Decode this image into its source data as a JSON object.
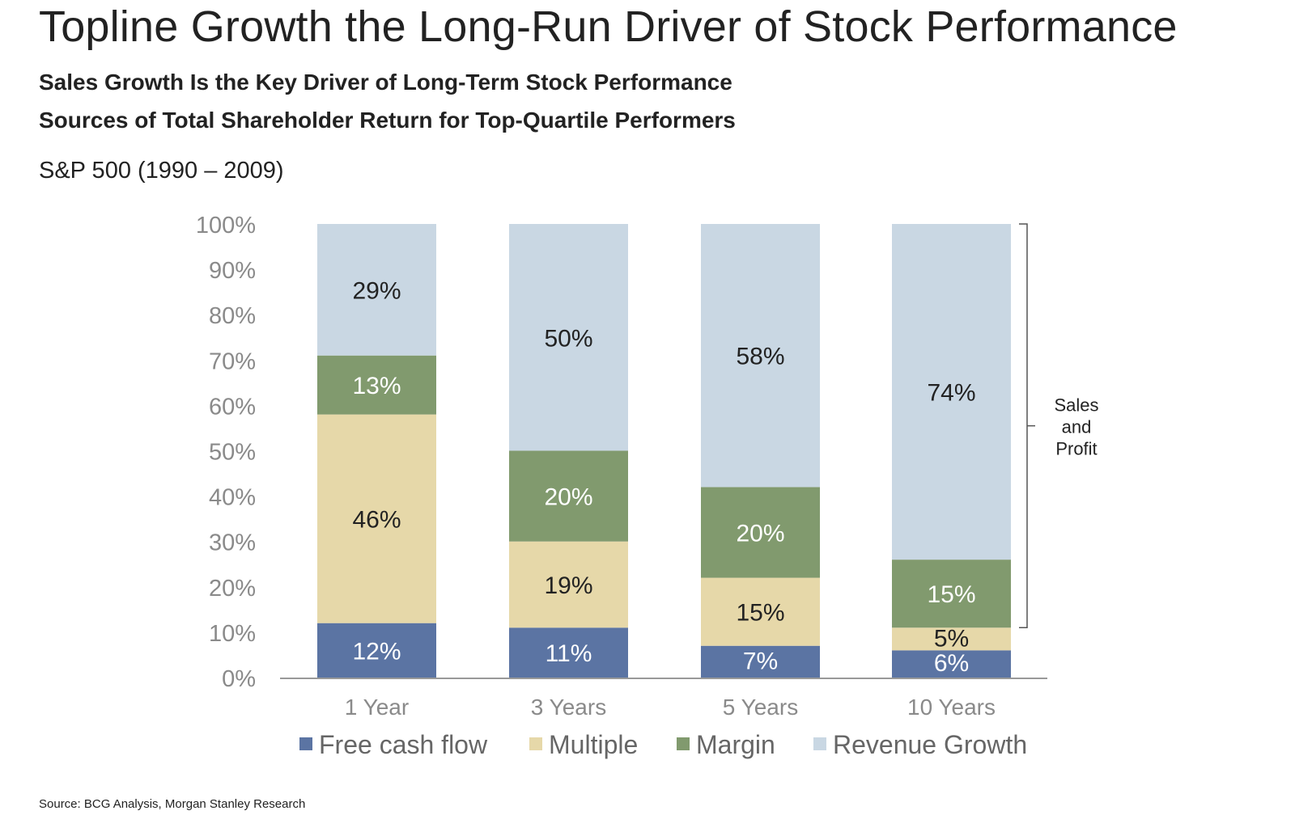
{
  "title": "Topline Growth the Long-Run Driver of Stock Performance",
  "subtitle_1": "Sales Growth Is the Key Driver of Long-Term Stock Performance",
  "subtitle_2": "Sources of Total Shareholder Return for Top-Quartile Performers",
  "period": "S&P 500 (1990 – 2009)",
  "source": "Source: BCG Analysis, Morgan Stanley Research",
  "chart_data": {
    "type": "bar",
    "stacked": true,
    "categories": [
      "1 Year",
      "3 Years",
      "5 Years",
      "10 Years"
    ],
    "series": [
      {
        "name": "Free cash flow",
        "values": [
          12,
          11,
          7,
          6
        ],
        "labels": [
          "12%",
          "11%",
          "7%",
          "6%"
        ],
        "color": "#5b74a3",
        "label_color": "#ffffff"
      },
      {
        "name": "Multiple",
        "values": [
          46,
          19,
          15,
          5
        ],
        "labels": [
          "46%",
          "19%",
          "15%",
          "5%"
        ],
        "color": "#e6d8a9",
        "label_color": "#222222"
      },
      {
        "name": "Margin",
        "values": [
          13,
          20,
          20,
          15
        ],
        "labels": [
          "13%",
          "20%",
          "20%",
          "15%"
        ],
        "color": "#819a6e",
        "label_color": "#ffffff"
      },
      {
        "name": "Revenue Growth",
        "values": [
          29,
          50,
          58,
          74
        ],
        "labels": [
          "29%",
          "50%",
          "58%",
          "74%"
        ],
        "color": "#c9d7e3",
        "label_color": "#222222"
      }
    ],
    "y_ticks": [
      "0%",
      "10%",
      "20%",
      "30%",
      "40%",
      "50%",
      "60%",
      "70%",
      "80%",
      "90%",
      "100%"
    ],
    "ylim": [
      0,
      100
    ],
    "grid": false,
    "legend_position": "bottom",
    "annotation": {
      "lines": [
        "Sales",
        "and",
        "Profit"
      ],
      "spans_series": [
        "Margin",
        "Revenue Growth"
      ],
      "bar": "10 Years"
    },
    "colors": {
      "axis": "#999999",
      "tick_text": "#8a8a8a",
      "legend_text": "#666666"
    }
  }
}
